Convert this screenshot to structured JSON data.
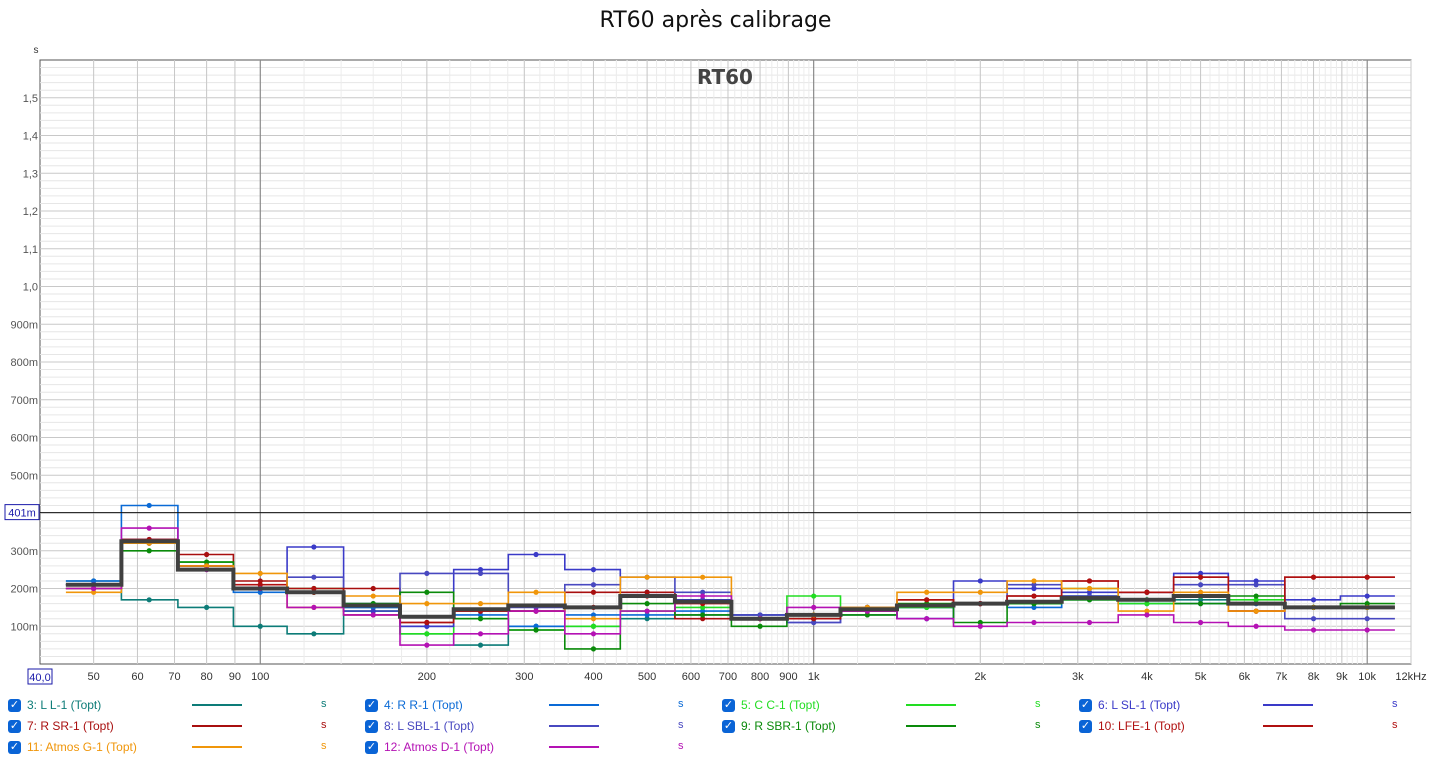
{
  "title": "RT60 après calibrage",
  "chart_data": {
    "type": "line",
    "subtitle": "RT60",
    "ylabel": "s",
    "xscale": "log",
    "xlim": [
      40,
      12000
    ],
    "ylim": [
      0,
      1.6
    ],
    "x_ticks": [
      {
        "v": 50,
        "label": "50"
      },
      {
        "v": 60,
        "label": "60"
      },
      {
        "v": 70,
        "label": "70"
      },
      {
        "v": 80,
        "label": "80"
      },
      {
        "v": 90,
        "label": "90"
      },
      {
        "v": 100,
        "label": "100"
      },
      {
        "v": 200,
        "label": "200"
      },
      {
        "v": 300,
        "label": "300"
      },
      {
        "v": 400,
        "label": "400"
      },
      {
        "v": 500,
        "label": "500"
      },
      {
        "v": 600,
        "label": "600"
      },
      {
        "v": 700,
        "label": "700"
      },
      {
        "v": 800,
        "label": "800"
      },
      {
        "v": 900,
        "label": "900"
      },
      {
        "v": 1000,
        "label": "1k"
      },
      {
        "v": 2000,
        "label": "2k"
      },
      {
        "v": 3000,
        "label": "3k"
      },
      {
        "v": 4000,
        "label": "4k"
      },
      {
        "v": 5000,
        "label": "5k"
      },
      {
        "v": 6000,
        "label": "6k"
      },
      {
        "v": 7000,
        "label": "7k"
      },
      {
        "v": 8000,
        "label": "8k"
      },
      {
        "v": 9000,
        "label": "9k"
      },
      {
        "v": 10000,
        "label": "10k"
      },
      {
        "v": 12000,
        "label": "12kHz"
      }
    ],
    "x_min_label": "40,0",
    "y_ticks": [
      {
        "v": 0.1,
        "label": "100m"
      },
      {
        "v": 0.2,
        "label": "200m"
      },
      {
        "v": 0.3,
        "label": "300m"
      },
      {
        "v": 0.4,
        "label": "400m"
      },
      {
        "v": 0.5,
        "label": "500m"
      },
      {
        "v": 0.6,
        "label": "600m"
      },
      {
        "v": 0.7,
        "label": "700m"
      },
      {
        "v": 0.8,
        "label": "800m"
      },
      {
        "v": 0.9,
        "label": "900m"
      },
      {
        "v": 1.0,
        "label": "1,0"
      },
      {
        "v": 1.1,
        "label": "1,1"
      },
      {
        "v": 1.2,
        "label": "1,2"
      },
      {
        "v": 1.3,
        "label": "1,3"
      },
      {
        "v": 1.4,
        "label": "1,4"
      },
      {
        "v": 1.5,
        "label": "1,5"
      }
    ],
    "cursor": {
      "y": 0.401,
      "label": "401m"
    },
    "band_centers": [
      50,
      63,
      80,
      100,
      125,
      160,
      200,
      250,
      315,
      400,
      500,
      630,
      800,
      1000,
      1250,
      1600,
      2000,
      2500,
      3150,
      4000,
      5000,
      6300,
      8000,
      10000
    ],
    "series": [
      {
        "name": "3: L L-1 (Topt)",
        "color": "#0d7c78",
        "values": [
          0.22,
          0.17,
          0.15,
          0.1,
          0.08,
          0.15,
          0.08,
          0.05,
          0.1,
          0.1,
          0.12,
          0.13,
          0.13,
          0.13,
          0.13,
          0.15,
          0.16,
          0.16,
          0.17,
          0.17,
          0.17,
          0.16,
          0.15,
          0.15
        ]
      },
      {
        "name": "4: R R-1 (Topt)",
        "color": "#0a6ad6",
        "values": [
          0.22,
          0.42,
          0.26,
          0.19,
          0.19,
          0.15,
          0.1,
          0.13,
          0.1,
          0.13,
          0.13,
          0.14,
          0.12,
          0.12,
          0.14,
          0.15,
          0.16,
          0.15,
          0.18,
          0.16,
          0.16,
          0.16,
          0.15,
          0.15
        ]
      },
      {
        "name": "5: C C-1 (Topt)",
        "color": "#22dd22",
        "values": [
          0.21,
          0.32,
          0.27,
          0.2,
          0.19,
          0.14,
          0.08,
          0.12,
          0.09,
          0.1,
          0.14,
          0.15,
          0.12,
          0.18,
          0.15,
          0.15,
          0.16,
          0.16,
          0.2,
          0.16,
          0.18,
          0.17,
          0.15,
          0.15
        ]
      },
      {
        "name": "6: L SL-1 (Topt)",
        "color": "#3a3ac8",
        "values": [
          0.21,
          0.33,
          0.26,
          0.2,
          0.31,
          0.14,
          0.1,
          0.25,
          0.29,
          0.25,
          0.19,
          0.17,
          0.13,
          0.11,
          0.15,
          0.12,
          0.22,
          0.2,
          0.19,
          0.19,
          0.24,
          0.22,
          0.17,
          0.18
        ]
      },
      {
        "name": "7: R SR-1 (Topt)",
        "color": "#a80f0f",
        "values": [
          0.21,
          0.33,
          0.29,
          0.22,
          0.19,
          0.2,
          0.11,
          0.14,
          0.14,
          0.19,
          0.19,
          0.12,
          0.12,
          0.12,
          0.15,
          0.17,
          0.16,
          0.18,
          0.22,
          0.19,
          0.23,
          0.14,
          0.23,
          0.23
        ]
      },
      {
        "name": "8: L SBL-1 (Topt)",
        "color": "#4848c0",
        "values": [
          0.21,
          0.32,
          0.26,
          0.2,
          0.23,
          0.16,
          0.24,
          0.24,
          0.15,
          0.21,
          0.23,
          0.19,
          0.13,
          0.11,
          0.15,
          0.12,
          0.16,
          0.21,
          0.18,
          0.17,
          0.21,
          0.21,
          0.12,
          0.12
        ]
      },
      {
        "name": "9: R SBR-1 (Topt)",
        "color": "#0a8a0a",
        "values": [
          0.2,
          0.3,
          0.27,
          0.2,
          0.2,
          0.16,
          0.19,
          0.12,
          0.09,
          0.04,
          0.16,
          0.13,
          0.1,
          0.12,
          0.13,
          0.16,
          0.11,
          0.16,
          0.17,
          0.17,
          0.16,
          0.18,
          0.15,
          0.16
        ]
      },
      {
        "name": "10: LFE-1 (Topt)",
        "color": "#b01010",
        "values": [
          0.2,
          0.32,
          0.26,
          0.21,
          0.2,
          0.13,
          0.11,
          0.14,
          0.14,
          0.15,
          0.18,
          0.16,
          0.12,
          0.12,
          0.14,
          0.17,
          0.16,
          0.18,
          0.22,
          0.19,
          0.23,
          0.14,
          0.23,
          0.23
        ]
      },
      {
        "name": "11: Atmos G-1 (Topt)",
        "color": "#f0960a",
        "values": [
          0.19,
          0.32,
          0.26,
          0.24,
          0.15,
          0.18,
          0.16,
          0.16,
          0.19,
          0.12,
          0.23,
          0.23,
          0.12,
          0.13,
          0.15,
          0.19,
          0.19,
          0.22,
          0.2,
          0.14,
          0.19,
          0.14,
          0.15,
          0.15
        ]
      },
      {
        "name": "12: Atmos D-1 (Topt)",
        "color": "#b412b4",
        "values": [
          0.2,
          0.36,
          0.25,
          0.2,
          0.15,
          0.13,
          0.05,
          0.08,
          0.14,
          0.08,
          0.14,
          0.18,
          0.12,
          0.15,
          0.14,
          0.12,
          0.1,
          0.11,
          0.11,
          0.13,
          0.11,
          0.1,
          0.09,
          0.09
        ]
      },
      {
        "name": "",
        "color": "#404040",
        "values": [
          0.21,
          0.325,
          0.25,
          0.2,
          0.19,
          0.155,
          0.125,
          0.145,
          0.155,
          0.15,
          0.18,
          0.165,
          0.12,
          0.13,
          0.145,
          0.155,
          0.16,
          0.165,
          0.175,
          0.17,
          0.18,
          0.16,
          0.15,
          0.15
        ]
      }
    ]
  },
  "legend": {
    "items": [
      {
        "label": "3: L L-1 (Topt)",
        "color": "#0d7c78",
        "unit": "s"
      },
      {
        "label": "4: R R-1 (Topt)",
        "color": "#0a6ad6",
        "unit": "s"
      },
      {
        "label": "5: C C-1 (Topt)",
        "color": "#22dd22",
        "unit": "s"
      },
      {
        "label": "6: L SL-1 (Topt)",
        "color": "#3a3ac8",
        "unit": "s"
      },
      {
        "label": "7: R SR-1 (Topt)",
        "color": "#a80f0f",
        "unit": "s"
      },
      {
        "label": "8: L SBL-1 (Topt)",
        "color": "#4848c0",
        "unit": "s"
      },
      {
        "label": "9: R SBR-1 (Topt)",
        "color": "#0a8a0a",
        "unit": "s"
      },
      {
        "label": "10: LFE-1 (Topt)",
        "color": "#b01010",
        "unit": "s"
      },
      {
        "label": "11: Atmos G-1 (Topt)",
        "color": "#f0960a",
        "unit": "s"
      },
      {
        "label": "12: Atmos D-1 (Topt)",
        "color": "#b412b4",
        "unit": "s"
      }
    ],
    "checkbox_mark": "✓"
  }
}
